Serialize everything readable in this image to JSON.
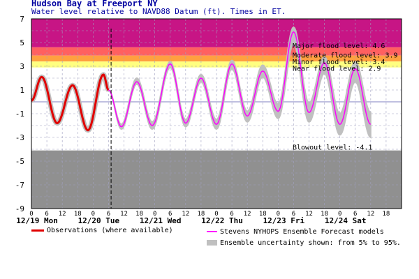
{
  "header": {
    "title": "Hudson Bay at Freeport NY",
    "subtitle": "Water level relative to NAVD88 Datum (ft). Times in ET."
  },
  "chart_data": {
    "type": "line",
    "title": "Hudson Bay at Freeport NY",
    "subtitle": "Water level relative to NAVD88 Datum (ft). Times in ET.",
    "ylabel": "",
    "xlabel": "",
    "ylim": [
      -9,
      7
    ],
    "xlim_hours": [
      0,
      144
    ],
    "y_ticks": [
      "7",
      "5",
      "3",
      "1",
      "-1",
      "-3",
      "-5",
      "-7",
      "-9"
    ],
    "x_ticks": [
      "0",
      "6",
      "12",
      "18",
      "0",
      "6",
      "12",
      "18",
      "0",
      "6",
      "12",
      "18",
      "0",
      "6",
      "12",
      "18",
      "0",
      "6",
      "12",
      "18",
      "0",
      "6",
      "12",
      "18"
    ],
    "day_labels": [
      "12/19 Mon",
      "12/20 Tue",
      "12/21 Wed",
      "12/22 Thu",
      "12/23 Fri",
      "12/24 Sat"
    ],
    "now_hour": 31,
    "thresholds": [
      {
        "label": "Major flood level: 4.6",
        "value": 4.6,
        "color": "#c71585"
      },
      {
        "label": "Moderate flood level: 3.9",
        "value": 3.9,
        "color": "#ff6060"
      },
      {
        "label": "Minor flood level: 3.4",
        "value": 3.4,
        "color": "#ffa040"
      },
      {
        "label": "Near flood level: 2.9",
        "value": 2.9,
        "color": "#ffff80"
      },
      {
        "label": "Blowout level: -4.1",
        "value": -4.1,
        "color": "#909090"
      }
    ],
    "series": [
      {
        "name": "Observations (where available)",
        "color": "#e00000",
        "x": [
          0,
          4,
          10,
          16,
          22,
          28,
          30
        ],
        "y": [
          0.1,
          2.1,
          -1.8,
          1.4,
          -2.4,
          2.3,
          1.0
        ]
      },
      {
        "name": "Stevens NYHOPS Ensemble Forecast models",
        "color": "#ff00ff",
        "x": [
          30,
          35,
          41,
          47,
          54,
          60,
          66,
          72,
          78,
          84,
          90,
          96,
          102,
          108,
          114,
          120,
          126,
          132
        ],
        "y": [
          1.0,
          -2.1,
          1.7,
          -2.0,
          3.2,
          -1.8,
          2.0,
          -1.9,
          3.2,
          -1.2,
          2.6,
          -0.8,
          5.9,
          -0.9,
          3.3,
          -1.9,
          2.8,
          -1.9
        ],
        "low": [
          1.0,
          -2.3,
          1.5,
          -2.3,
          2.9,
          -2.1,
          1.7,
          -2.3,
          2.8,
          -1.7,
          2.1,
          -1.4,
          4.9,
          -1.7,
          2.4,
          -2.8,
          1.7,
          -3.0
        ],
        "high": [
          1.0,
          -1.9,
          2.0,
          -1.7,
          3.4,
          -1.5,
          2.3,
          -1.5,
          3.5,
          -0.8,
          3.1,
          -0.2,
          6.3,
          -0.1,
          3.8,
          -1.0,
          3.4,
          -0.9
        ]
      }
    ],
    "legend": [
      {
        "label": "Observations (where available)",
        "color": "#e00000",
        "kind": "line"
      },
      {
        "label": "Stevens NYHOPS Ensemble Forecast models",
        "color": "#ff00ff",
        "kind": "line"
      },
      {
        "label": "Ensemble uncertainty shown: from 5% to 95%.",
        "color": "#c0c0c0",
        "kind": "band"
      }
    ]
  }
}
